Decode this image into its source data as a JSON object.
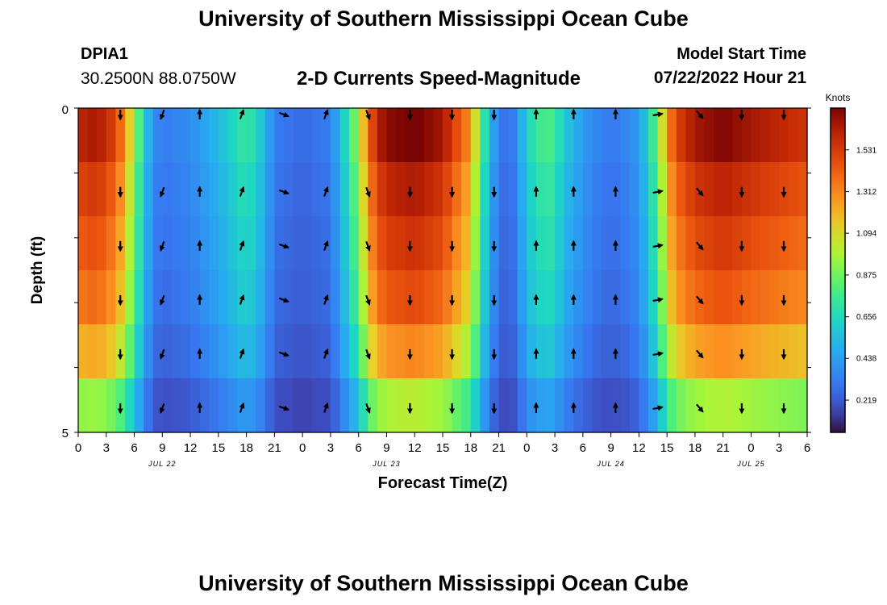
{
  "header": {
    "title": "University of Southern Mississippi Ocean Cube",
    "station": "DPIA1",
    "coords": "30.2500N  88.0750W",
    "subtitle": "2-D Currents Speed-Magnitude",
    "model_start_label": "Model Start Time",
    "model_start_date": "07/22/2022 Hour 21"
  },
  "footer": {
    "title": "University of Southern Mississippi Ocean Cube"
  },
  "chart_data": {
    "type": "heatmap",
    "title": "2-D Currents Speed-Magnitude",
    "xlabel": "Forecast Time(Z)",
    "ylabel": "Depth (ft)",
    "ylim": [
      0,
      5
    ],
    "y_ticks": [
      "0",
      "5"
    ],
    "x_tick_labels": [
      "0",
      "3",
      "6",
      "9",
      "12",
      "15",
      "18",
      "21",
      "0",
      "3",
      "6",
      "9",
      "12",
      "15",
      "18",
      "21",
      "0",
      "3",
      "6",
      "9",
      "12",
      "15",
      "18",
      "21",
      "0",
      "3",
      "6"
    ],
    "date_labels": [
      {
        "label": "JUL 22",
        "hour": 9
      },
      {
        "label": "JUL 23",
        "hour": 33
      },
      {
        "label": "JUL 24",
        "hour": 57
      },
      {
        "label": "JUL 25",
        "hour": 72
      }
    ],
    "x_range_hours": [
      0,
      78
    ],
    "colorbar": {
      "unit_label": "Knots",
      "ticks": [
        "1.531",
        "1.312",
        "1.094",
        "0.875",
        "0.656",
        "0.438",
        "0.219"
      ],
      "range": [
        0.05,
        1.75
      ]
    },
    "speed_profile_hours": [
      0,
      2,
      4,
      5,
      6,
      7,
      8,
      9,
      12,
      15,
      18,
      20,
      21,
      24,
      27,
      30,
      31,
      32,
      33,
      36,
      39,
      42,
      43,
      44,
      45,
      46,
      47,
      48,
      50,
      51,
      52,
      54,
      56,
      58,
      60,
      62,
      63,
      64,
      66,
      68,
      69,
      70,
      72,
      75,
      78
    ],
    "speed_profile_knots": [
      1.5,
      1.55,
      1.4,
      1.2,
      0.9,
      0.6,
      0.35,
      0.3,
      0.35,
      0.5,
      0.7,
      0.5,
      0.3,
      0.25,
      0.3,
      0.9,
      1.3,
      1.5,
      1.6,
      1.65,
      1.55,
      1.2,
      0.8,
      0.5,
      0.3,
      0.25,
      0.35,
      0.6,
      0.75,
      0.7,
      0.55,
      0.4,
      0.3,
      0.3,
      0.4,
      0.8,
      1.2,
      1.4,
      1.55,
      1.6,
      1.62,
      1.6,
      1.55,
      1.5,
      1.45
    ],
    "depth_factors": [
      1.05,
      1.0,
      0.95,
      0.9,
      0.8,
      0.62
    ],
    "arrow_hours": [
      4.5,
      9,
      13,
      17.5,
      22,
      26.5,
      31,
      35.5,
      40,
      44.5,
      49,
      53,
      57.5,
      62,
      66.5,
      71,
      75.5
    ],
    "arrow_directions_deg": [
      180,
      200,
      0,
      20,
      110,
      20,
      160,
      180,
      180,
      180,
      0,
      0,
      0,
      80,
      140,
      180,
      180
    ]
  }
}
